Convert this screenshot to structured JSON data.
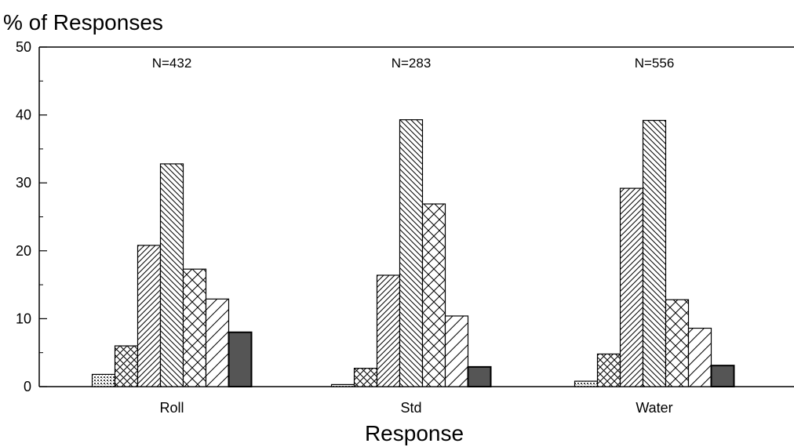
{
  "chart_data": {
    "type": "bar",
    "ylabel": "% of Responses",
    "xlabel": "Response",
    "ylim": [
      0,
      50
    ],
    "yticks": [
      0,
      10,
      20,
      30,
      40,
      50
    ],
    "grid": false,
    "legend": "none",
    "categories": [
      "Roll",
      "Std",
      "Water"
    ],
    "annotations": [
      "N=432",
      "N=283",
      "N=556"
    ],
    "series": [
      {
        "values": [
          1.8,
          0.3,
          0.8
        ],
        "pattern": "dots",
        "fill": "#ffffff"
      },
      {
        "values": [
          6.0,
          2.7,
          4.8
        ],
        "pattern": "crosshatch",
        "fill": "#ffffff"
      },
      {
        "values": [
          20.8,
          16.4,
          29.2
        ],
        "pattern": "diagonal-up-dense",
        "fill": "#ffffff"
      },
      {
        "values": [
          32.8,
          39.3,
          39.2
        ],
        "pattern": "diagonal-down-dense",
        "fill": "#ffffff"
      },
      {
        "values": [
          17.3,
          26.9,
          12.8
        ],
        "pattern": "crosshatch-wide",
        "fill": "#ffffff"
      },
      {
        "values": [
          12.9,
          10.4,
          8.6
        ],
        "pattern": "diagonal-up-wide",
        "fill": "#ffffff"
      },
      {
        "values": [
          8.0,
          2.9,
          3.1
        ],
        "pattern": "solid",
        "fill": "#555555"
      }
    ]
  }
}
